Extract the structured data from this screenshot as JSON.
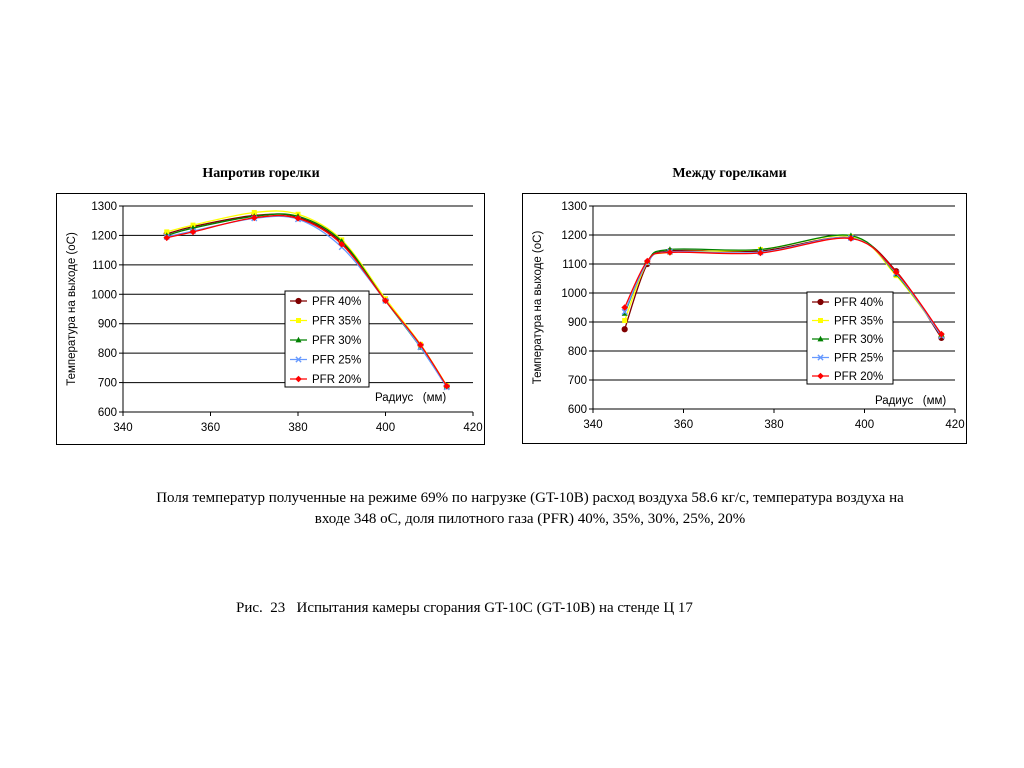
{
  "chart_data": [
    {
      "type": "line",
      "title": "Напротив горелки",
      "xlabel": "Радиус   (мм)",
      "ylabel": "Температура на выходе  (оС)",
      "xlim": [
        340,
        420
      ],
      "ylim": [
        600,
        1300
      ],
      "xticks": [
        340,
        360,
        380,
        400,
        420
      ],
      "yticks": [
        600,
        700,
        800,
        900,
        1000,
        1100,
        1200,
        1300
      ],
      "grid": "horizontal",
      "legend": "center-right",
      "x": [
        350,
        356,
        370,
        380,
        390,
        400,
        408,
        414
      ],
      "series": [
        {
          "name": "PFR 40%",
          "color": "#800000",
          "marker": "circle",
          "values": [
            1205,
            1230,
            1268,
            1262,
            1175,
            980,
            828,
            688
          ]
        },
        {
          "name": "PFR 35%",
          "color": "#ffff00",
          "marker": "square",
          "values": [
            1212,
            1235,
            1278,
            1272,
            1185,
            985,
            830,
            690
          ]
        },
        {
          "name": "PFR 30%",
          "color": "#008000",
          "marker": "triangle",
          "values": [
            1200,
            1225,
            1265,
            1265,
            1180,
            978,
            820,
            686
          ]
        },
        {
          "name": "PFR 25%",
          "color": "#6699ff",
          "marker": "x",
          "values": [
            1195,
            1215,
            1258,
            1255,
            1160,
            978,
            820,
            684
          ]
        },
        {
          "name": "PFR 20%",
          "color": "#ff0000",
          "marker": "diamond",
          "values": [
            1192,
            1212,
            1260,
            1258,
            1170,
            978,
            828,
            688
          ]
        }
      ]
    },
    {
      "type": "line",
      "title": "Между горелками",
      "xlabel": "Радиус   (мм)",
      "ylabel": "Температура на выходе  (оС)",
      "xlim": [
        340,
        420
      ],
      "ylim": [
        600,
        1300
      ],
      "xticks": [
        340,
        360,
        380,
        400,
        420
      ],
      "yticks": [
        600,
        700,
        800,
        900,
        1000,
        1100,
        1200,
        1300
      ],
      "grid": "horizontal",
      "legend": "center-right",
      "x": [
        347,
        352,
        357,
        377,
        397,
        407,
        417
      ],
      "series": [
        {
          "name": "PFR 40%",
          "color": "#800000",
          "marker": "circle",
          "values": [
            875,
            1100,
            1145,
            1145,
            1190,
            1075,
            845
          ]
        },
        {
          "name": "PFR 35%",
          "color": "#ffff00",
          "marker": "square",
          "values": [
            905,
            1105,
            1140,
            1150,
            1195,
            1060,
            855
          ]
        },
        {
          "name": "PFR 30%",
          "color": "#008000",
          "marker": "triangle",
          "values": [
            930,
            1108,
            1150,
            1150,
            1198,
            1065,
            858
          ]
        },
        {
          "name": "PFR 25%",
          "color": "#6699ff",
          "marker": "x",
          "values": [
            935,
            1105,
            1142,
            1140,
            1190,
            1068,
            852
          ]
        },
        {
          "name": "PFR 20%",
          "color": "#ff0000",
          "marker": "diamond",
          "values": [
            950,
            1110,
            1140,
            1138,
            1188,
            1072,
            858
          ]
        }
      ]
    }
  ],
  "caption": {
    "line1": "Поля температур полученные на режиме 69% по нагрузке (GT-10B) расход воздуха 58.6 кг/с, температура воздуха на",
    "line2": "входе 348 оС, доля пилотного газа (PFR) 40%, 35%, 30%, 25%, 20%"
  },
  "figure_caption": "Рис.  23   Испытания камеры сгорания GT-10C (GT-10B) на стенде Ц 17"
}
